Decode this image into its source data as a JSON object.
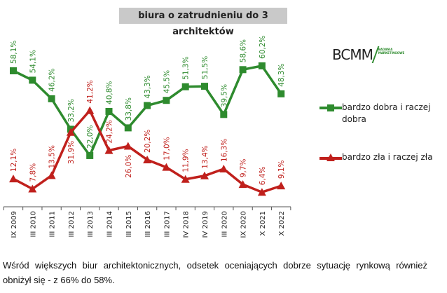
{
  "chart_data": {
    "type": "line",
    "title": "biura o zatrudnieniu do 3 architektów",
    "categories": [
      "IX 2009",
      "III 2010",
      "III 2011",
      "III 2012",
      "III 2013",
      "III 2014",
      "III 2015",
      "III 2016",
      "III 2017",
      "IV 2018",
      "IV 2019",
      "III 2020",
      "IX 2020",
      "X 2021",
      "X 2022"
    ],
    "series": [
      {
        "name": "bardzo dobra i raczej dobra",
        "color": "#2e8b2e",
        "marker": "square",
        "values": [
          58.1,
          54.1,
          46.2,
          33.2,
          22.0,
          40.8,
          33.8,
          43.3,
          45.5,
          51.3,
          51.5,
          39.5,
          58.6,
          60.2,
          48.3
        ],
        "labels": [
          "58,1%",
          "54,1%",
          "46,2%",
          "33,2%",
          "22,0%",
          "40,8%",
          "33,8%",
          "43,3%",
          "45,5%",
          "51,3%",
          "51,5%",
          "39,5%",
          "58,6%",
          "60,2%",
          "48,3%"
        ]
      },
      {
        "name": "bardzo zła i raczej zła",
        "color": "#c0201c",
        "marker": "triangle",
        "values": [
          12.1,
          7.8,
          13.5,
          31.9,
          41.2,
          24.2,
          26.0,
          20.2,
          17.0,
          11.9,
          13.4,
          16.3,
          9.7,
          6.4,
          9.1
        ],
        "labels": [
          "12,1%",
          "7,8%",
          "13,5%",
          "31,9%",
          "41,2%",
          "24,2%",
          "26,0%",
          "20,2%",
          "17,0%",
          "11,9%",
          "13,4%",
          "16,3%",
          "9,7%",
          "6,4%",
          "9,1%"
        ]
      }
    ],
    "legend": "right",
    "grid": false
  },
  "logo": {
    "main": "BCMM",
    "sub1": "BADANIA",
    "sub2": "MARKETINGOWE"
  },
  "caption": "Wśród większych biur architektonicznych, odsetek oceniających dobrze sytuację rynkową również obniżył się - z 66% do 58%."
}
